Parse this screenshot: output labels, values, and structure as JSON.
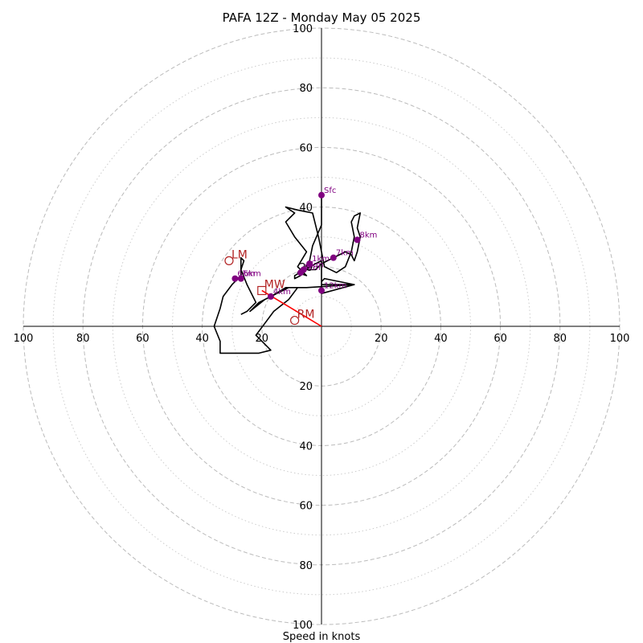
{
  "chart_data": {
    "type": "hodograph",
    "title": "PAFA 12Z - Monday May 05 2025",
    "xlabel": "Speed in knots",
    "units": "knots",
    "xlim": [
      -100,
      100
    ],
    "ylim": [
      -100,
      100
    ],
    "ring_major": [
      20,
      40,
      60,
      80,
      100
    ],
    "ring_minor": [
      10,
      30,
      50,
      70,
      90
    ],
    "x_tick_labels": [
      "100",
      "80",
      "60",
      "40",
      "20",
      "20",
      "40",
      "60",
      "80",
      "100"
    ],
    "x_tick_values": [
      -100,
      -80,
      -60,
      -40,
      -20,
      20,
      40,
      60,
      80,
      100
    ],
    "y_tick_labels": [
      "100",
      "80",
      "60",
      "40",
      "20",
      "20",
      "40",
      "60",
      "80",
      "100"
    ],
    "y_tick_values": [
      100,
      80,
      60,
      40,
      20,
      -20,
      -40,
      -60,
      -80,
      -100
    ],
    "trace": [
      [
        0,
        44
      ],
      [
        0,
        34
      ],
      [
        -3,
        27
      ],
      [
        -4,
        22
      ],
      [
        -6,
        19
      ],
      [
        -8,
        18
      ],
      [
        -5,
        17
      ],
      [
        -8,
        20
      ],
      [
        -5,
        25
      ],
      [
        -9,
        30
      ],
      [
        -12,
        35
      ],
      [
        -9,
        38
      ],
      [
        -12,
        40
      ],
      [
        -8,
        39
      ],
      [
        -3,
        38
      ],
      [
        -1,
        30
      ],
      [
        0,
        25
      ],
      [
        1,
        20
      ],
      [
        5,
        18
      ],
      [
        8,
        20
      ],
      [
        10,
        25
      ],
      [
        11,
        30
      ],
      [
        10,
        35
      ],
      [
        11,
        37
      ],
      [
        13,
        38
      ],
      [
        12,
        33
      ],
      [
        13,
        30
      ],
      [
        12,
        25
      ],
      [
        11,
        22
      ],
      [
        10,
        24
      ],
      [
        8,
        25
      ],
      [
        6,
        24
      ],
      [
        4,
        23
      ],
      [
        2,
        22
      ],
      [
        0,
        21
      ],
      [
        -2,
        19
      ],
      [
        -5,
        19
      ],
      [
        -7,
        18
      ],
      [
        -7,
        17
      ],
      [
        -9,
        16
      ],
      [
        -9,
        17
      ],
      [
        -2,
        21
      ],
      [
        0,
        22
      ],
      [
        0,
        14
      ],
      [
        2,
        14
      ],
      [
        11,
        14
      ],
      [
        0,
        11
      ],
      [
        0,
        15
      ],
      [
        1,
        16
      ],
      [
        11,
        14
      ],
      [
        -5,
        13
      ],
      [
        -8,
        13
      ],
      [
        -11,
        13
      ],
      [
        -13,
        12
      ],
      [
        -17,
        10
      ],
      [
        -19,
        9
      ],
      [
        -24,
        5
      ],
      [
        -21,
        8
      ],
      [
        -17,
        10
      ],
      [
        -12,
        13
      ],
      [
        -10,
        13
      ],
      [
        -8,
        13
      ],
      [
        -11,
        9
      ],
      [
        -16,
        5
      ],
      [
        -19,
        1
      ],
      [
        -22,
        -3
      ],
      [
        -17,
        -8
      ],
      [
        -21,
        -9
      ],
      [
        -31,
        -9
      ],
      [
        -34,
        -9
      ],
      [
        -34,
        -5
      ],
      [
        -36,
        0
      ],
      [
        -34,
        6
      ],
      [
        -33,
        10
      ],
      [
        -30,
        14
      ],
      [
        -27,
        17
      ],
      [
        -27,
        19
      ],
      [
        -26,
        22
      ],
      [
        -27,
        23
      ],
      [
        -27,
        19
      ],
      [
        -25,
        14
      ],
      [
        -22,
        8
      ],
      [
        -25,
        5
      ],
      [
        -27,
        4
      ]
    ],
    "height_markers": [
      {
        "label": "Sfc",
        "u": 0,
        "v": 44
      },
      {
        "label": "1km",
        "u": -4,
        "v": 21
      },
      {
        "label": "2km",
        "u": -6,
        "v": 19
      },
      {
        "label": "3km",
        "u": -7,
        "v": 18
      },
      {
        "label": "4km",
        "u": -17,
        "v": 10
      },
      {
        "label": "5km",
        "u": -27,
        "v": 16
      },
      {
        "label": "6km",
        "u": -29,
        "v": 16
      },
      {
        "label": "7km",
        "u": 4,
        "v": 23
      },
      {
        "label": "8km",
        "u": 12,
        "v": 29
      },
      {
        "label": "12km",
        "u": 0,
        "v": 12
      }
    ],
    "storm_motion": [
      {
        "label": "LM",
        "u": -31,
        "v": 22,
        "symbol": "circle"
      },
      {
        "label": "MW",
        "u": -20,
        "v": 12,
        "symbol": "square"
      },
      {
        "label": "RM",
        "u": -9,
        "v": 2,
        "symbol": "circle"
      }
    ],
    "shear_vector": {
      "from": [
        0,
        0
      ],
      "to": [
        -20,
        12
      ]
    },
    "colors": {
      "trace": "#000000",
      "markers": "#800080",
      "storm": "#b22222",
      "shear": "#ff0000",
      "grid": "#bbbbbb"
    }
  }
}
